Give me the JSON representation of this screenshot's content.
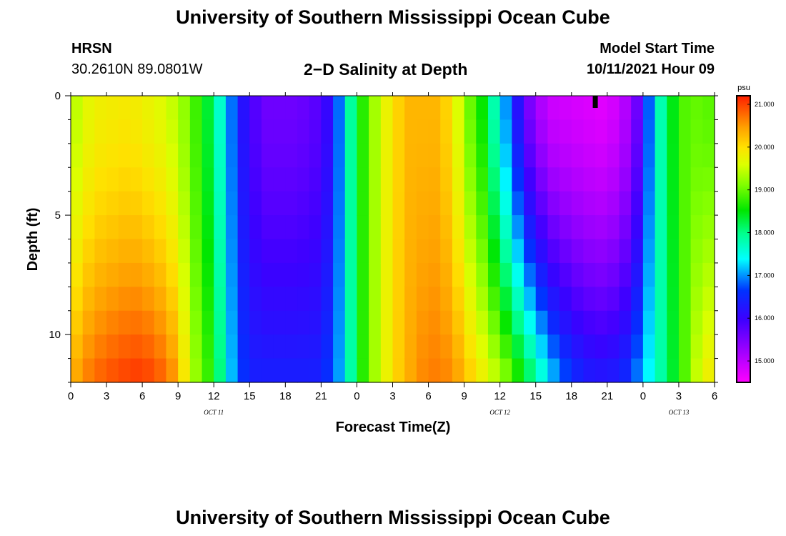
{
  "page": {
    "title_top": "University of Southern Mississippi Ocean Cube",
    "title_bottom": "University of Southern Mississippi Ocean Cube",
    "station": "HRSN",
    "coords": "30.2610N  89.0801W",
    "subtitle": "2−D Salinity at Depth",
    "model_start_label": "Model Start Time",
    "model_start_value": "10/11/2021 Hour 09"
  },
  "chart_data": {
    "type": "heatmap",
    "title": "2−D Salinity at Depth",
    "xlabel": "Forecast Time(Z)",
    "ylabel": "Depth (ft)",
    "x_tick_labels": [
      "0",
      "3",
      "6",
      "9",
      "12",
      "15",
      "18",
      "21",
      "0",
      "3",
      "6",
      "9",
      "12",
      "15",
      "18",
      "21",
      "0",
      "3",
      "6"
    ],
    "x_range_hours": [
      0,
      54
    ],
    "y_ticks": [
      0,
      5,
      10
    ],
    "y_range_ft": [
      0,
      12
    ],
    "day_labels": [
      {
        "label": "OCT 11",
        "hour": 12
      },
      {
        "label": "OCT 12",
        "hour": 36
      },
      {
        "label": "OCT 13",
        "hour": 51
      }
    ],
    "colorbar": {
      "unit": "psu",
      "min": 14.5,
      "max": 21.2,
      "tick_values": [
        21,
        20,
        19,
        18,
        17,
        16,
        15
      ],
      "tick_labels": [
        "21.000",
        "20.000",
        "19.000",
        "18.000",
        "17.000",
        "16.000",
        "15.000"
      ]
    },
    "current_time_marker_hour": 44,
    "salinity_keypoints_surface": [
      [
        0,
        19.3
      ],
      [
        1,
        19.6
      ],
      [
        2,
        19.8
      ],
      [
        5,
        19.9
      ],
      [
        8,
        19.6
      ],
      [
        9.5,
        19.2
      ],
      [
        10.5,
        18.8
      ],
      [
        12,
        18.1
      ],
      [
        13,
        17.2
      ],
      [
        14.5,
        16.2
      ],
      [
        16,
        15.6
      ],
      [
        19,
        15.6
      ],
      [
        21,
        15.8
      ],
      [
        22,
        16.3
      ],
      [
        23,
        17.4
      ],
      [
        24,
        18.4
      ],
      [
        25.5,
        19.3
      ],
      [
        27,
        20.0
      ],
      [
        28.5,
        20.3
      ],
      [
        31,
        20.3
      ],
      [
        32,
        19.9
      ],
      [
        33.5,
        19.0
      ],
      [
        35,
        18.3
      ],
      [
        36,
        17.3
      ],
      [
        37,
        16.7
      ],
      [
        38,
        15.7
      ],
      [
        40,
        14.9
      ],
      [
        45,
        14.7
      ],
      [
        47,
        15.2
      ],
      [
        48,
        16.0
      ],
      [
        48.5,
        16.8
      ],
      [
        49,
        17.5
      ],
      [
        50,
        18.1
      ],
      [
        51,
        18.8
      ],
      [
        52,
        19.0
      ],
      [
        54,
        18.9
      ]
    ],
    "salinity_keypoints_bottom": [
      [
        0,
        20.3
      ],
      [
        1,
        20.6
      ],
      [
        2,
        20.8
      ],
      [
        4,
        21.0
      ],
      [
        6,
        21.1
      ],
      [
        8,
        20.8
      ],
      [
        9,
        20.4
      ],
      [
        10,
        19.5
      ],
      [
        11,
        19.0
      ],
      [
        12,
        18.6
      ],
      [
        13,
        17.5
      ],
      [
        14,
        16.8
      ],
      [
        15,
        16.4
      ],
      [
        21,
        16.4
      ],
      [
        22,
        16.8
      ],
      [
        23,
        17.3
      ],
      [
        24,
        18.4
      ],
      [
        25.5,
        19.3
      ],
      [
        27,
        20.0
      ],
      [
        28.5,
        20.4
      ],
      [
        30,
        20.7
      ],
      [
        32,
        20.6
      ],
      [
        34,
        20.0
      ],
      [
        36,
        19.4
      ],
      [
        37,
        19.0
      ],
      [
        38,
        18.5
      ],
      [
        39,
        18.0
      ],
      [
        40,
        17.4
      ],
      [
        41,
        17.0
      ],
      [
        42,
        16.6
      ],
      [
        44,
        16.3
      ],
      [
        46,
        16.4
      ],
      [
        47,
        16.7
      ],
      [
        48,
        17.2
      ],
      [
        49,
        17.6
      ],
      [
        50,
        18.1
      ],
      [
        51,
        18.6
      ],
      [
        52,
        19.2
      ],
      [
        53,
        19.8
      ],
      [
        54,
        19.9
      ]
    ]
  }
}
